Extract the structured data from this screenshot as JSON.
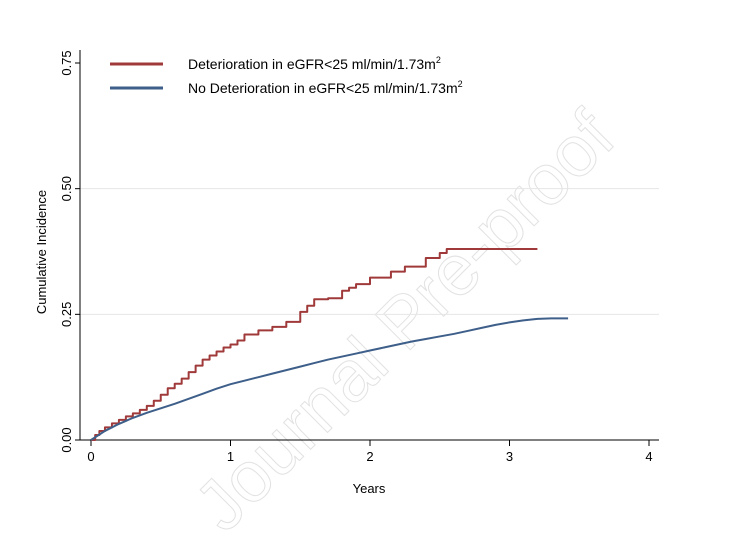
{
  "watermark": "Journal Pre-proof",
  "chart_data": {
    "type": "line",
    "title": "",
    "xlabel": "Years",
    "ylabel": "Cumulative Incidence",
    "xlim": [
      0,
      4
    ],
    "ylim": [
      0,
      0.75
    ],
    "xticks": [
      0,
      1,
      2,
      3,
      4
    ],
    "yticks": [
      0.0,
      0.25,
      0.5,
      0.75
    ],
    "ytick_labels": [
      "0.00",
      "0.25",
      "0.50",
      "0.75"
    ],
    "grid": "horizontal",
    "legend_position": "top-left",
    "series": [
      {
        "name": "Deterioration in eGFR<25 ml/min/1.73m²",
        "name_base": "Deterioration in eGFR<25 ml/min/1.73m",
        "name_sup": "2",
        "color": "#a03a3a",
        "step": true,
        "x": [
          0,
          0.03,
          0.06,
          0.1,
          0.15,
          0.2,
          0.25,
          0.3,
          0.35,
          0.4,
          0.45,
          0.5,
          0.55,
          0.6,
          0.65,
          0.7,
          0.75,
          0.8,
          0.85,
          0.9,
          0.95,
          1.0,
          1.05,
          1.1,
          1.2,
          1.3,
          1.4,
          1.5,
          1.55,
          1.6,
          1.7,
          1.8,
          1.85,
          1.9,
          2.0,
          2.15,
          2.25,
          2.4,
          2.5,
          2.55,
          2.7,
          3.0,
          3.2
        ],
        "y": [
          0,
          0.01,
          0.018,
          0.025,
          0.033,
          0.04,
          0.047,
          0.053,
          0.06,
          0.068,
          0.078,
          0.09,
          0.103,
          0.112,
          0.122,
          0.135,
          0.148,
          0.16,
          0.168,
          0.176,
          0.184,
          0.19,
          0.198,
          0.21,
          0.218,
          0.225,
          0.235,
          0.255,
          0.267,
          0.28,
          0.282,
          0.297,
          0.303,
          0.31,
          0.323,
          0.335,
          0.345,
          0.362,
          0.372,
          0.38,
          0.38,
          0.38,
          0.38
        ]
      },
      {
        "name": "No Deterioration in eGFR<25 ml/min/1.73m²",
        "name_base": "No Deterioration in eGFR<25 ml/min/1.73m",
        "name_sup": "2",
        "color": "#3e5f8a",
        "step": false,
        "x": [
          0,
          0.1,
          0.2,
          0.3,
          0.4,
          0.5,
          0.6,
          0.7,
          0.8,
          0.9,
          1.0,
          1.1,
          1.2,
          1.3,
          1.4,
          1.5,
          1.6,
          1.7,
          1.8,
          1.9,
          2.0,
          2.1,
          2.2,
          2.3,
          2.4,
          2.5,
          2.6,
          2.7,
          2.8,
          2.9,
          3.0,
          3.1,
          3.2,
          3.3,
          3.42
        ],
        "y": [
          0,
          0.018,
          0.032,
          0.044,
          0.054,
          0.063,
          0.072,
          0.082,
          0.092,
          0.102,
          0.111,
          0.118,
          0.125,
          0.132,
          0.139,
          0.146,
          0.153,
          0.16,
          0.166,
          0.172,
          0.178,
          0.184,
          0.19,
          0.196,
          0.201,
          0.206,
          0.211,
          0.217,
          0.223,
          0.229,
          0.234,
          0.238,
          0.241,
          0.242,
          0.242
        ]
      }
    ]
  }
}
